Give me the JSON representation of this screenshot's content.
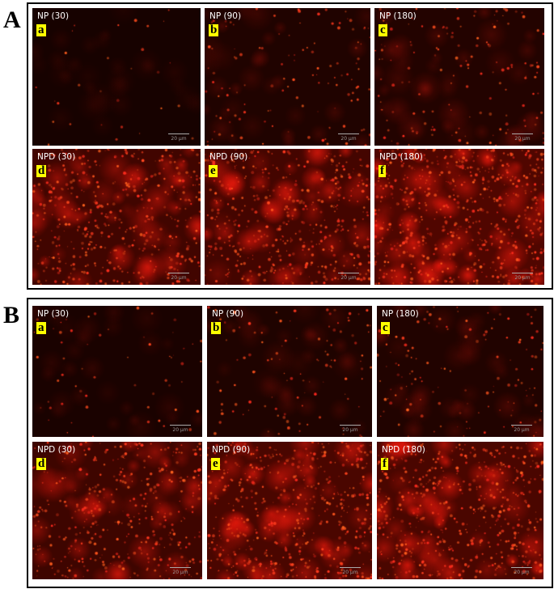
{
  "figure": {
    "panels": [
      {
        "label": "A",
        "images": [
          {
            "title": "NP (30)",
            "letter": "a",
            "scale_bar": "20 µm",
            "intensity": 0.05
          },
          {
            "title": "NP (90)",
            "letter": "b",
            "scale_bar": "20 µm",
            "intensity": 0.2
          },
          {
            "title": "NP (180)",
            "letter": "c",
            "scale_bar": "20 µm",
            "intensity": 0.25
          },
          {
            "title": "NPD (30)",
            "letter": "d",
            "scale_bar": "20 µm",
            "intensity": 0.75
          },
          {
            "title": "NPD (90)",
            "letter": "e",
            "scale_bar": "20 µm",
            "intensity": 0.8
          },
          {
            "title": "NPD (180)",
            "letter": "f",
            "scale_bar": "20 µm",
            "intensity": 1.0
          }
        ]
      },
      {
        "label": "B",
        "images": [
          {
            "title": "NP (30)",
            "letter": "a",
            "scale_bar": "20 µm",
            "intensity": 0.1
          },
          {
            "title": "NP (90)",
            "letter": "b",
            "scale_bar": "20 µm",
            "intensity": 0.18
          },
          {
            "title": "NP (180)",
            "letter": "c",
            "scale_bar": "20 µm",
            "intensity": 0.22
          },
          {
            "title": "NPD (30)",
            "letter": "d",
            "scale_bar": "20 µm",
            "intensity": 0.7
          },
          {
            "title": "NPD (90)",
            "letter": "e",
            "scale_bar": "20 µm",
            "intensity": 0.9
          },
          {
            "title": "NPD (180)",
            "letter": "f",
            "scale_bar": "20 µm",
            "intensity": 0.9
          }
        ]
      }
    ],
    "colors": {
      "fluorescence": "#ff1a0a",
      "label_highlight": "#ffff00",
      "background": "#0d0000"
    }
  }
}
